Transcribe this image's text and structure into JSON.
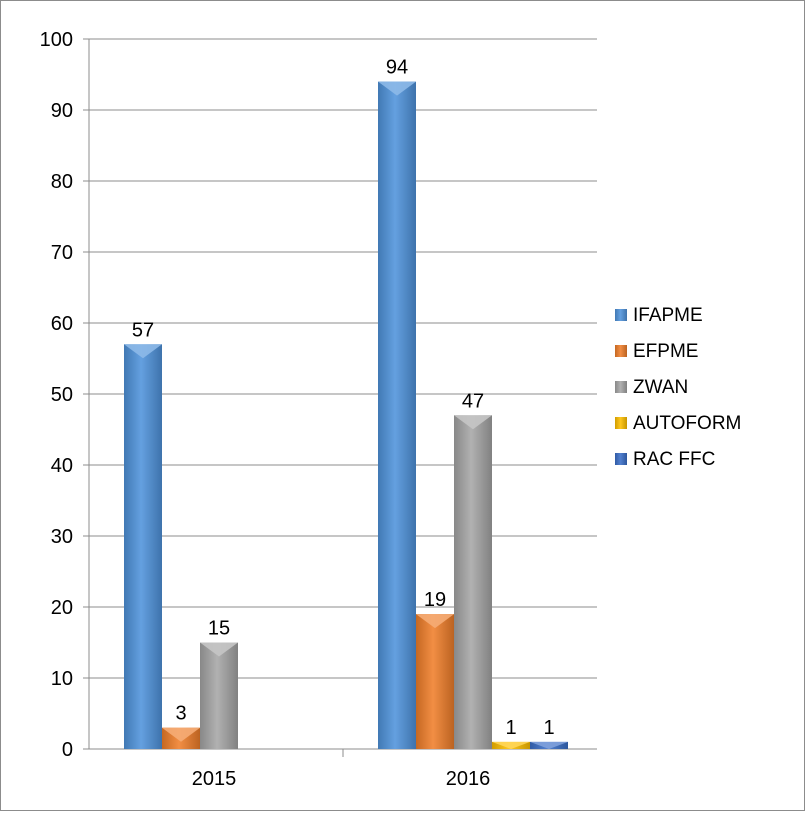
{
  "chart_data": {
    "type": "bar",
    "title": "",
    "xlabel": "",
    "ylabel": "",
    "categories": [
      "2015",
      "2016"
    ],
    "ylim": [
      0,
      100
    ],
    "yticks": [
      0,
      10,
      20,
      30,
      40,
      50,
      60,
      70,
      80,
      90,
      100
    ],
    "grid": true,
    "legend_position": "right",
    "series": [
      {
        "name": "IFAPME",
        "color": "#4f93dc",
        "values": [
          57,
          94
        ]
      },
      {
        "name": "EFPME",
        "color": "#f07f2a",
        "values": [
          3,
          19
        ]
      },
      {
        "name": "ZWAN",
        "color": "#a6a6a6",
        "values": [
          15,
          47
        ]
      },
      {
        "name": "AUTOFORM",
        "color": "#ffc000",
        "values": [
          null,
          1
        ]
      },
      {
        "name": "RAC FFC",
        "color": "#3a6fc9",
        "values": [
          null,
          1
        ]
      }
    ]
  }
}
